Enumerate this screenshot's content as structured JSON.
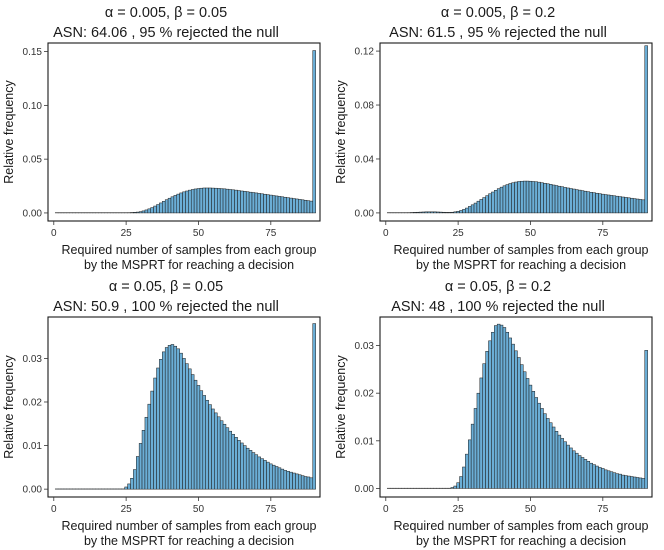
{
  "chart_data": [
    {
      "type": "bar",
      "title_line1": "α = 0.005,  β = 0.05",
      "title_line2": "ASN:  64.06 ,  95 % rejected the null",
      "xlabel_line1": "Required number of samples from each group",
      "xlabel_line2": "by the MSPRT for reaching a decision",
      "ylabel": "Relative frequency",
      "xlim": [
        -2,
        92
      ],
      "ylim": [
        -0.0075,
        0.158
      ],
      "xticks": [
        0,
        25,
        50,
        75
      ],
      "xtick_labels": [
        "0",
        "25",
        "50",
        "75"
      ],
      "yticks": [
        0,
        0.05,
        0.1,
        0.15
      ],
      "ytick_labels": [
        "0.00",
        "0.05",
        "0.10",
        "0.15"
      ],
      "bar_color": "#6baed6",
      "x_start": 1,
      "values": [
        0,
        0,
        0,
        0,
        0,
        0,
        0,
        0,
        0,
        0,
        0,
        0,
        0,
        0,
        0,
        0,
        0,
        0,
        0,
        0,
        0,
        0,
        0,
        0,
        0.00015,
        0.00025,
        0.0004,
        0.0006,
        0.0008,
        0.0012,
        0.0019,
        0.0028,
        0.0038,
        0.005,
        0.0064,
        0.0078,
        0.0093,
        0.0108,
        0.0123,
        0.0137,
        0.015,
        0.0163,
        0.0175,
        0.0186,
        0.0196,
        0.0204,
        0.0212,
        0.0218,
        0.0223,
        0.0227,
        0.023,
        0.0232,
        0.0232,
        0.0232,
        0.0231,
        0.023,
        0.0228,
        0.0226,
        0.0224,
        0.0221,
        0.0218,
        0.0215,
        0.0212,
        0.0208,
        0.0204,
        0.0201,
        0.0197,
        0.0193,
        0.019,
        0.0186,
        0.0182,
        0.0178,
        0.0174,
        0.017,
        0.0166,
        0.0162,
        0.0158,
        0.0154,
        0.015,
        0.0146,
        0.0142,
        0.0138,
        0.0134,
        0.013,
        0.0126,
        0.0122,
        0.0118,
        0.0114,
        0.011,
        0.151
      ]
    },
    {
      "type": "bar",
      "title_line1": "α = 0.005,  β = 0.2",
      "title_line2": "ASN:  61.5 ,  95 % rejected the null",
      "xlabel_line1": "Required number of samples from each group",
      "xlabel_line2": "by the MSPRT for reaching a decision",
      "ylabel": "Relative frequency",
      "xlim": [
        -2,
        92
      ],
      "ylim": [
        -0.006,
        0.126
      ],
      "xticks": [
        0,
        25,
        50,
        75
      ],
      "xtick_labels": [
        "0",
        "25",
        "50",
        "75"
      ],
      "yticks": [
        0,
        0.04,
        0.08,
        0.12
      ],
      "ytick_labels": [
        "0.00",
        "0.04",
        "0.08",
        "0.12"
      ],
      "bar_color": "#6baed6",
      "x_start": 1,
      "values": [
        0,
        0,
        0,
        0,
        0,
        0,
        0.0001,
        0.0002,
        0.0003,
        0.0004,
        0.0005,
        0.0006,
        0.0007,
        0.0008,
        0.0008,
        0.0008,
        0.0008,
        0.0007,
        0.0006,
        0.0005,
        0.0004,
        0.0004,
        0.0005,
        0.0008,
        0.0012,
        0.0018,
        0.0026,
        0.0036,
        0.0048,
        0.006,
        0.0073,
        0.0087,
        0.01,
        0.0114,
        0.0128,
        0.0142,
        0.0155,
        0.0168,
        0.018,
        0.0191,
        0.0201,
        0.021,
        0.0218,
        0.0224,
        0.0229,
        0.0233,
        0.0235,
        0.0236,
        0.0236,
        0.0235,
        0.0233,
        0.0231,
        0.0228,
        0.0224,
        0.022,
        0.0216,
        0.0212,
        0.0207,
        0.0203,
        0.0198,
        0.0194,
        0.0189,
        0.0185,
        0.0181,
        0.0177,
        0.0173,
        0.0169,
        0.0165,
        0.0161,
        0.0157,
        0.0153,
        0.015,
        0.0146,
        0.0143,
        0.0139,
        0.0136,
        0.0133,
        0.013,
        0.0127,
        0.0124,
        0.0121,
        0.0118,
        0.0115,
        0.0112,
        0.0109,
        0.0106,
        0.0103,
        0.01,
        0.0097,
        0.124
      ]
    },
    {
      "type": "bar",
      "title_line1": "α = 0.05,  β = 0.05",
      "title_line2": "ASN:  50.9 ,  100 % rejected the null",
      "xlabel_line1": "Required number of samples from each group",
      "xlabel_line2": "by the MSPRT for reaching a decision",
      "ylabel": "Relative frequency",
      "xlim": [
        -2,
        92
      ],
      "ylim": [
        -0.0018,
        0.0395
      ],
      "xticks": [
        0,
        25,
        50,
        75
      ],
      "xtick_labels": [
        "0",
        "25",
        "50",
        "75"
      ],
      "yticks": [
        0,
        0.01,
        0.02,
        0.03
      ],
      "ytick_labels": [
        "0.00",
        "0.01",
        "0.02",
        "0.03"
      ],
      "bar_color": "#6baed6",
      "x_start": 1,
      "values": [
        0,
        0,
        0,
        0,
        0,
        0,
        0,
        0,
        0,
        0,
        0,
        0,
        0,
        0,
        0,
        0,
        0,
        0,
        0,
        0,
        0,
        0,
        0,
        0,
        0.0005,
        0.0012,
        0.0025,
        0.0045,
        0.0075,
        0.0105,
        0.0135,
        0.0165,
        0.0195,
        0.0225,
        0.0255,
        0.0278,
        0.0298,
        0.0315,
        0.0325,
        0.033,
        0.0332,
        0.0328,
        0.0322,
        0.0312,
        0.03,
        0.0288,
        0.0276,
        0.0263,
        0.025,
        0.0238,
        0.0226,
        0.0215,
        0.0204,
        0.0194,
        0.0184,
        0.0175,
        0.0166,
        0.0157,
        0.0149,
        0.0141,
        0.0133,
        0.0126,
        0.0119,
        0.0112,
        0.0106,
        0.01,
        0.0094,
        0.0089,
        0.0084,
        0.0079,
        0.0074,
        0.007,
        0.0066,
        0.0062,
        0.0058,
        0.0055,
        0.0052,
        0.0049,
        0.0046,
        0.0043,
        0.0041,
        0.0039,
        0.0037,
        0.0035,
        0.0033,
        0.0031,
        0.0029,
        0.0028,
        0.0026,
        0.038
      ]
    },
    {
      "type": "bar",
      "title_line1": "α = 0.05,  β = 0.2",
      "title_line2": "ASN:  48 ,  100 % rejected the null",
      "xlabel_line1": "Required number of samples from each group",
      "xlabel_line2": "by the MSPRT for reaching a decision",
      "ylabel": "Relative frequency",
      "xlim": [
        -2,
        92
      ],
      "ylim": [
        -0.0018,
        0.036
      ],
      "xticks": [
        0,
        25,
        50,
        75
      ],
      "xtick_labels": [
        "0",
        "25",
        "50",
        "75"
      ],
      "yticks": [
        0,
        0.01,
        0.02,
        0.03
      ],
      "ytick_labels": [
        "0.00",
        "0.01",
        "0.02",
        "0.03"
      ],
      "bar_color": "#6baed6",
      "x_start": 1,
      "values": [
        0,
        0,
        0,
        0,
        0,
        0,
        0,
        0,
        0,
        0,
        0,
        0,
        0,
        0,
        0,
        0,
        0,
        0,
        0,
        0,
        0,
        0,
        0.0002,
        0.0005,
        0.0012,
        0.0025,
        0.0045,
        0.0072,
        0.0102,
        0.0135,
        0.0168,
        0.02,
        0.0232,
        0.0262,
        0.0288,
        0.031,
        0.0328,
        0.0342,
        0.0345,
        0.0343,
        0.0338,
        0.0328,
        0.0316,
        0.0303,
        0.0289,
        0.0275,
        0.026,
        0.0245,
        0.0231,
        0.0217,
        0.0204,
        0.0191,
        0.0179,
        0.0168,
        0.0157,
        0.0147,
        0.0138,
        0.0129,
        0.012,
        0.0112,
        0.0105,
        0.0098,
        0.0091,
        0.0085,
        0.0079,
        0.0074,
        0.0069,
        0.0065,
        0.0061,
        0.0057,
        0.0053,
        0.005,
        0.0047,
        0.0044,
        0.0042,
        0.0039,
        0.0037,
        0.0035,
        0.0033,
        0.0031,
        0.003,
        0.0028,
        0.0027,
        0.0026,
        0.0025,
        0.0024,
        0.0023,
        0.0022,
        0.0021,
        0.029
      ]
    }
  ]
}
